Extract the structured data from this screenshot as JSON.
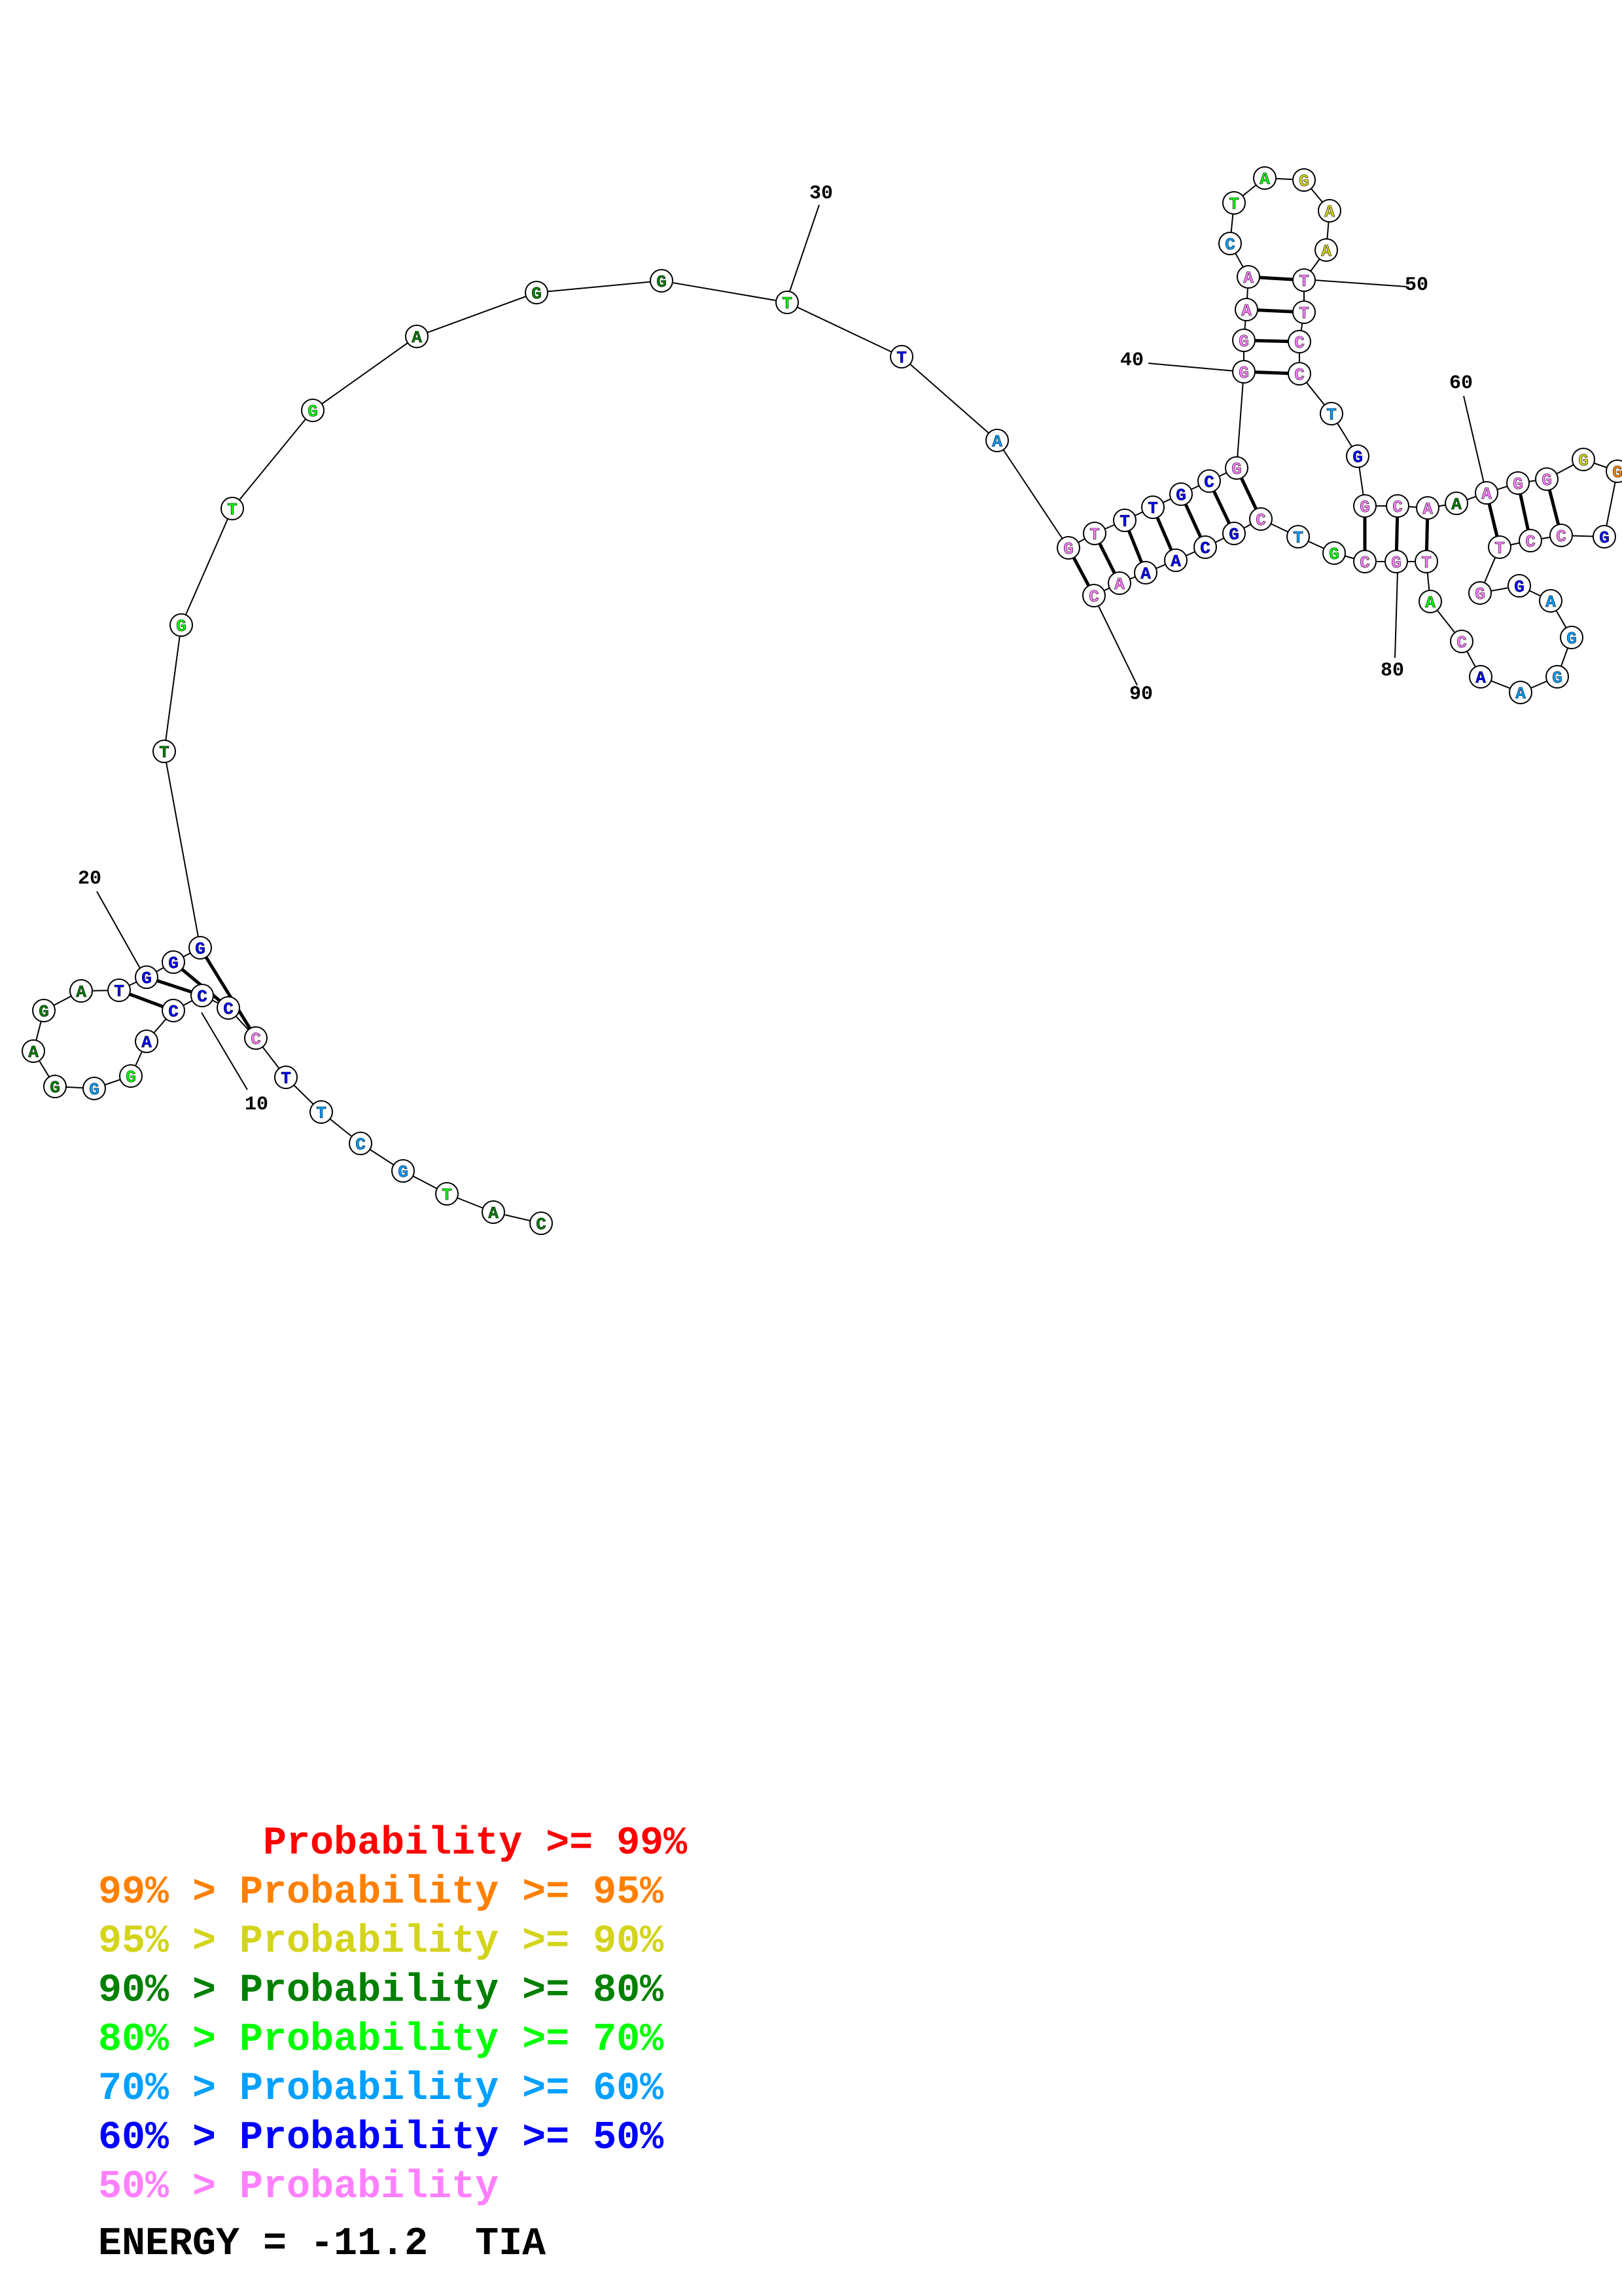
{
  "colors": {
    "ge99": "#ff0000",
    "ge95": "#ff8000",
    "ge90": "#d4d41c",
    "ge80": "#008000",
    "ge70": "#00ff00",
    "ge60": "#00a0ff",
    "ge50": "#0000ff",
    "lt50": "#ff80ff"
  },
  "sequence": [
    {
      "n": 1,
      "b": "C",
      "c": "ge80"
    },
    {
      "n": 2,
      "b": "A",
      "c": "ge80"
    },
    {
      "n": 3,
      "b": "T",
      "c": "ge70"
    },
    {
      "n": 4,
      "b": "G",
      "c": "ge60"
    },
    {
      "n": 5,
      "b": "C",
      "c": "ge60"
    },
    {
      "n": 6,
      "b": "T",
      "c": "ge60"
    },
    {
      "n": 7,
      "b": "T",
      "c": "ge50"
    },
    {
      "n": 8,
      "b": "C",
      "c": "lt50"
    },
    {
      "n": 9,
      "b": "C",
      "c": "ge50"
    },
    {
      "n": 10,
      "b": "C",
      "c": "ge50"
    },
    {
      "n": 11,
      "b": "C",
      "c": "ge50"
    },
    {
      "n": 12,
      "b": "A",
      "c": "ge50"
    },
    {
      "n": 13,
      "b": "G",
      "c": "ge70"
    },
    {
      "n": 14,
      "b": "G",
      "c": "ge60"
    },
    {
      "n": 15,
      "b": "G",
      "c": "ge80"
    },
    {
      "n": 16,
      "b": "A",
      "c": "ge80"
    },
    {
      "n": 17,
      "b": "G",
      "c": "ge80"
    },
    {
      "n": 18,
      "b": "A",
      "c": "ge80"
    },
    {
      "n": 19,
      "b": "T",
      "c": "ge50"
    },
    {
      "n": 20,
      "b": "G",
      "c": "ge50"
    },
    {
      "n": 21,
      "b": "G",
      "c": "ge50"
    },
    {
      "n": 22,
      "b": "G",
      "c": "ge50"
    },
    {
      "n": 23,
      "b": "T",
      "c": "ge80"
    },
    {
      "n": 24,
      "b": "G",
      "c": "ge70"
    },
    {
      "n": 25,
      "b": "T",
      "c": "ge70"
    },
    {
      "n": 26,
      "b": "G",
      "c": "ge70"
    },
    {
      "n": 27,
      "b": "A",
      "c": "ge80"
    },
    {
      "n": 28,
      "b": "G",
      "c": "ge80"
    },
    {
      "n": 29,
      "b": "G",
      "c": "ge80"
    },
    {
      "n": 30,
      "b": "T",
      "c": "ge70"
    },
    {
      "n": 31,
      "b": "T",
      "c": "ge50"
    },
    {
      "n": 32,
      "b": "A",
      "c": "ge60"
    },
    {
      "n": 33,
      "b": "G",
      "c": "lt50"
    },
    {
      "n": 34,
      "b": "T",
      "c": "lt50"
    },
    {
      "n": 35,
      "b": "T",
      "c": "ge50"
    },
    {
      "n": 36,
      "b": "T",
      "c": "ge50"
    },
    {
      "n": 37,
      "b": "G",
      "c": "ge50"
    },
    {
      "n": 38,
      "b": "C",
      "c": "ge50"
    },
    {
      "n": 39,
      "b": "G",
      "c": "lt50"
    },
    {
      "n": 40,
      "b": "G",
      "c": "lt50"
    },
    {
      "n": 41,
      "b": "G",
      "c": "lt50"
    },
    {
      "n": 42,
      "b": "A",
      "c": "lt50"
    },
    {
      "n": 43,
      "b": "A",
      "c": "lt50"
    },
    {
      "n": 44,
      "b": "C",
      "c": "ge60"
    },
    {
      "n": 45,
      "b": "T",
      "c": "ge70"
    },
    {
      "n": 46,
      "b": "A",
      "c": "ge70"
    },
    {
      "n": 47,
      "b": "G",
      "c": "ge90"
    },
    {
      "n": 48,
      "b": "A",
      "c": "ge90"
    },
    {
      "n": 49,
      "b": "A",
      "c": "ge90"
    },
    {
      "n": 50,
      "b": "T",
      "c": "lt50"
    },
    {
      "n": 51,
      "b": "T",
      "c": "lt50"
    },
    {
      "n": 52,
      "b": "C",
      "c": "lt50"
    },
    {
      "n": 53,
      "b": "C",
      "c": "lt50"
    },
    {
      "n": 54,
      "b": "T",
      "c": "ge60"
    },
    {
      "n": 55,
      "b": "G",
      "c": "ge50"
    },
    {
      "n": 56,
      "b": "G",
      "c": "lt50"
    },
    {
      "n": 57,
      "b": "C",
      "c": "lt50"
    },
    {
      "n": 58,
      "b": "A",
      "c": "lt50"
    },
    {
      "n": 59,
      "b": "A",
      "c": "ge80"
    },
    {
      "n": 60,
      "b": "A",
      "c": "lt50"
    },
    {
      "n": 61,
      "b": "G",
      "c": "lt50"
    },
    {
      "n": 62,
      "b": "G",
      "c": "lt50"
    },
    {
      "n": 63,
      "b": "G",
      "c": "ge90"
    },
    {
      "n": 64,
      "b": "G",
      "c": "ge95"
    },
    {
      "n": 65,
      "b": "G",
      "c": "ge50"
    },
    {
      "n": 66,
      "b": "C",
      "c": "lt50"
    },
    {
      "n": 67,
      "b": "C",
      "c": "lt50"
    },
    {
      "n": 68,
      "b": "T",
      "c": "lt50"
    },
    {
      "n": 69,
      "b": "G",
      "c": "lt50"
    },
    {
      "n": 70,
      "b": "G",
      "c": "ge50"
    },
    {
      "n": 71,
      "b": "A",
      "c": "ge60"
    },
    {
      "n": 72,
      "b": "G",
      "c": "ge60"
    },
    {
      "n": 73,
      "b": "G",
      "c": "ge60"
    },
    {
      "n": 74,
      "b": "A",
      "c": "ge60"
    },
    {
      "n": 75,
      "b": "A",
      "c": "ge50"
    },
    {
      "n": 76,
      "b": "C",
      "c": "lt50"
    },
    {
      "n": 77,
      "b": "A",
      "c": "ge70"
    },
    {
      "n": 78,
      "b": "T",
      "c": "lt50"
    },
    {
      "n": 79,
      "b": "G",
      "c": "lt50"
    },
    {
      "n": 80,
      "b": "C",
      "c": "lt50"
    },
    {
      "n": 81,
      "b": "G",
      "c": "ge70"
    },
    {
      "n": 82,
      "b": "T",
      "c": "ge60"
    },
    {
      "n": 83,
      "b": "C",
      "c": "lt50"
    },
    {
      "n": 84,
      "b": "G",
      "c": "ge50"
    },
    {
      "n": 85,
      "b": "C",
      "c": "ge50"
    },
    {
      "n": 86,
      "b": "A",
      "c": "ge50"
    },
    {
      "n": 87,
      "b": "A",
      "c": "ge50"
    },
    {
      "n": 88,
      "b": "A",
      "c": "lt50"
    },
    {
      "n": 89,
      "b": "C",
      "c": "lt50"
    }
  ],
  "pairs": [
    [
      8,
      22
    ],
    [
      9,
      21
    ],
    [
      10,
      20
    ],
    [
      11,
      19
    ],
    [
      33,
      89
    ],
    [
      34,
      88
    ],
    [
      35,
      87
    ],
    [
      36,
      86
    ],
    [
      37,
      85
    ],
    [
      38,
      84
    ],
    [
      39,
      83
    ],
    [
      40,
      53
    ],
    [
      41,
      52
    ],
    [
      42,
      51
    ],
    [
      43,
      50
    ],
    [
      56,
      80
    ],
    [
      57,
      79
    ],
    [
      58,
      78
    ],
    [
      60,
      68
    ],
    [
      61,
      67
    ],
    [
      62,
      66
    ]
  ],
  "position_labels": [
    "10",
    "20",
    "30",
    "40",
    "50",
    "60",
    "80",
    "90"
  ],
  "legend": [
    {
      "text": "       Probability >= 99%",
      "c": "ge99"
    },
    {
      "text": "99% > Probability >= 95%",
      "c": "ge95"
    },
    {
      "text": "95% > Probability >= 90%",
      "c": "ge90"
    },
    {
      "text": "90% > Probability >= 80%",
      "c": "ge80"
    },
    {
      "text": "80% > Probability >= 70%",
      "c": "ge70"
    },
    {
      "text": "70% > Probability >= 60%",
      "c": "ge60"
    },
    {
      "text": "60% > Probability >= 50%",
      "c": "ge50"
    },
    {
      "text": "50% > Probability",
      "c": "lt50"
    }
  ],
  "energy": "ENERGY = -11.2  TIA"
}
